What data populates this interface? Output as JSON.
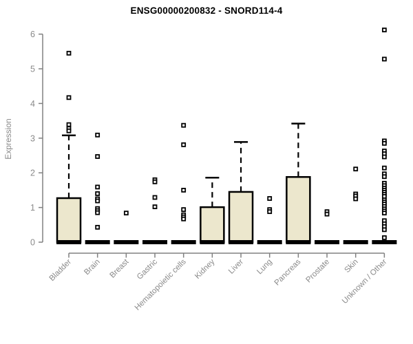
{
  "title": "ENSG00000200832 - SNORD114-4",
  "chart_data": {
    "type": "boxplot",
    "title": "ENSG00000200832 - SNORD114-4",
    "xlabel": "",
    "ylabel": "Expression",
    "ylim": [
      0,
      6
    ],
    "yticks": [
      0,
      1,
      2,
      3,
      4,
      5,
      6
    ],
    "grid": false,
    "legend": "none",
    "categories": [
      "Bladder",
      "Brain",
      "Breast",
      "Gastric",
      "Hematopoietic cells",
      "Kidney",
      "Liver",
      "Lung",
      "Pancreas",
      "Prostate",
      "Skin",
      "Unknown / Other"
    ],
    "series": [
      {
        "name": "Bladder",
        "q1": 0,
        "median": 0,
        "q3": 1.27,
        "whisker_low": 0,
        "whisker_high": 3.08,
        "outliers": [
          5.45,
          4.17,
          3.39,
          3.28,
          3.21
        ]
      },
      {
        "name": "Brain",
        "q1": 0,
        "median": 0,
        "q3": 0,
        "whisker_low": 0,
        "whisker_high": 0,
        "outliers": [
          3.09,
          2.47,
          1.59,
          1.4,
          1.25,
          1.19,
          0.97,
          0.91,
          0.85,
          0.43
        ]
      },
      {
        "name": "Breast",
        "q1": 0,
        "median": 0,
        "q3": 0,
        "whisker_low": 0,
        "whisker_high": 0,
        "outliers": [
          0.84
        ]
      },
      {
        "name": "Gastric",
        "q1": 0,
        "median": 0,
        "q3": 0,
        "whisker_low": 0,
        "whisker_high": 0,
        "outliers": [
          1.8,
          1.74,
          1.29,
          1.02
        ]
      },
      {
        "name": "Hematopoietic cells",
        "q1": 0,
        "median": 0,
        "q3": 0,
        "whisker_low": 0,
        "whisker_high": 0,
        "outliers": [
          3.37,
          2.81,
          1.5,
          0.94,
          0.79,
          0.73,
          0.67
        ]
      },
      {
        "name": "Kidney",
        "q1": 0,
        "median": 0,
        "q3": 1.01,
        "whisker_low": 0,
        "whisker_high": 1.86,
        "outliers": []
      },
      {
        "name": "Liver",
        "q1": 0,
        "median": 0,
        "q3": 1.45,
        "whisker_low": 0,
        "whisker_high": 2.89,
        "outliers": []
      },
      {
        "name": "Lung",
        "q1": 0,
        "median": 0,
        "q3": 0,
        "whisker_low": 0,
        "whisker_high": 0,
        "outliers": [
          1.26,
          0.94,
          0.88
        ]
      },
      {
        "name": "Pancreas",
        "q1": 0,
        "median": 0,
        "q3": 1.88,
        "whisker_low": 0,
        "whisker_high": 3.42,
        "outliers": []
      },
      {
        "name": "Prostate",
        "q1": 0,
        "median": 0,
        "q3": 0,
        "whisker_low": 0,
        "whisker_high": 0,
        "outliers": [
          0.88,
          0.81
        ]
      },
      {
        "name": "Skin",
        "q1": 0,
        "median": 0,
        "q3": 0,
        "whisker_low": 0,
        "whisker_high": 0,
        "outliers": [
          2.11,
          1.39,
          1.33,
          1.25
        ]
      },
      {
        "name": "Unknown / Other",
        "q1": 0,
        "median": 0,
        "q3": 0,
        "whisker_low": 0,
        "whisker_high": 0,
        "outliers": [
          6.12,
          5.28,
          2.92,
          2.85,
          2.63,
          2.55,
          2.46,
          2.14,
          1.97,
          1.89,
          1.7,
          1.63,
          1.56,
          1.5,
          1.44,
          1.38,
          1.32,
          1.22,
          1.16,
          1.1,
          1.03,
          0.96,
          0.9,
          0.84,
          0.62,
          0.53,
          0.45,
          0.36,
          0.13
        ]
      }
    ],
    "colors": {
      "box_fill": "#ECE7CD",
      "box_stroke": "#000000",
      "median": "#000000",
      "whisker": "#000000",
      "outlier_stroke": "#000000",
      "outlier_fill": "#FFFFFF",
      "axis": "#808080",
      "tick_label": "#8A8A8A",
      "title": "#000000"
    }
  }
}
